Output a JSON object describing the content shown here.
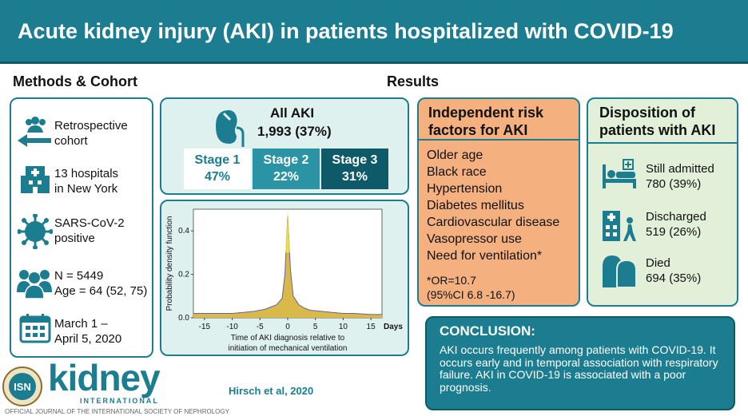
{
  "title": "Acute kidney injury (AKI) in patients hospitalized with COVID-19",
  "methods": {
    "heading": "Methods & Cohort",
    "items": [
      {
        "icon": "people-arrow-icon",
        "line1": "Retrospective",
        "line2": "cohort"
      },
      {
        "icon": "hospital-icon",
        "line1": "13 hospitals",
        "line2": "in New York"
      },
      {
        "icon": "virus-icon",
        "line1": "SARS-CoV-2",
        "line2": "positive"
      },
      {
        "icon": "patients-icon",
        "line1": "N = 5449",
        "line2": "Age = 64 (52, 75)"
      },
      {
        "icon": "calendar-icon",
        "line1": "March 1 –",
        "line2": "April 5, 2020"
      }
    ]
  },
  "results": {
    "heading": "Results",
    "aki": {
      "label": "All AKI",
      "count": "1,993 (37%)"
    },
    "stages": [
      {
        "label": "Stage 1",
        "pct": "47%"
      },
      {
        "label": "Stage 2",
        "pct": "22%"
      },
      {
        "label": "Stage 3",
        "pct": "31%"
      }
    ]
  },
  "chart_data": {
    "type": "area",
    "ylabel": "Probability density function",
    "xlabel_line1": "Time of AKI diagnosis relative to",
    "xlabel_line2": "initiation of mechanical ventilation",
    "x_unit": "Days",
    "xticks": [
      -15,
      -10,
      -5,
      0,
      5,
      10,
      15
    ],
    "yticks": [
      0.0,
      0.2,
      0.4
    ],
    "xlim": [
      -17,
      17
    ],
    "ylim": [
      0,
      0.5
    ],
    "x": [
      -17,
      -15,
      -12,
      -10,
      -8,
      -6,
      -4,
      -3,
      -2,
      -1,
      -0.5,
      0,
      0.5,
      1,
      2,
      3,
      4,
      6,
      8,
      10,
      12,
      15,
      17
    ],
    "y": [
      0.02,
      0.02,
      0.02,
      0.02,
      0.025,
      0.03,
      0.04,
      0.05,
      0.06,
      0.09,
      0.2,
      0.47,
      0.22,
      0.1,
      0.06,
      0.045,
      0.035,
      0.03,
      0.025,
      0.02,
      0.02,
      0.015,
      0.015
    ],
    "colors": {
      "fill": "#d8b94a",
      "line": "#6b5fa8",
      "peak": "#f1ea3c"
    }
  },
  "risk": {
    "heading_line1": "Independent risk",
    "heading_line2": "factors for AKI",
    "items": [
      "Older age",
      "Black race",
      "Hypertension",
      "Diabetes mellitus",
      "Cardiovascular disease",
      "Vasopressor use",
      "Need for ventilation*"
    ],
    "footnote_line1": "*OR=10.7",
    "footnote_line2": "(95%CI 6.8 -16.7)"
  },
  "disposition": {
    "heading_line1": "Disposition of",
    "heading_line2": "patients with AKI",
    "items": [
      {
        "icon": "hospital-bed-icon",
        "label": "Still admitted",
        "value": "780 (39%)"
      },
      {
        "icon": "discharge-icon",
        "label": "Discharged",
        "value": "519 (26%)"
      },
      {
        "icon": "died-icon",
        "label": "Died",
        "value": "694 (35%)"
      }
    ]
  },
  "conclusion": {
    "heading": "CONCLUSION:",
    "text": "AKI occurs frequently among patients with COVID-19. It occurs early and in temporal association with respiratory failure. AKI in COVID-19 is associated with a poor prognosis."
  },
  "footer": {
    "seal_text": "ISN",
    "logo_main": "kidney",
    "logo_sub": "INTERNATIONAL",
    "journal_line": "OFFICIAL JOURNAL OF THE INTERNATIONAL SOCIETY OF NEPHROLOGY",
    "citation": "Hirsch et al, 2020"
  },
  "colors": {
    "teal": "#1b7d8f",
    "dark_teal": "#0f5a68",
    "mid_teal": "#2a93a4",
    "orange": "#f5b080",
    "green_bg": "#e2f0d9",
    "light_teal_bg": "#dff1ee"
  }
}
